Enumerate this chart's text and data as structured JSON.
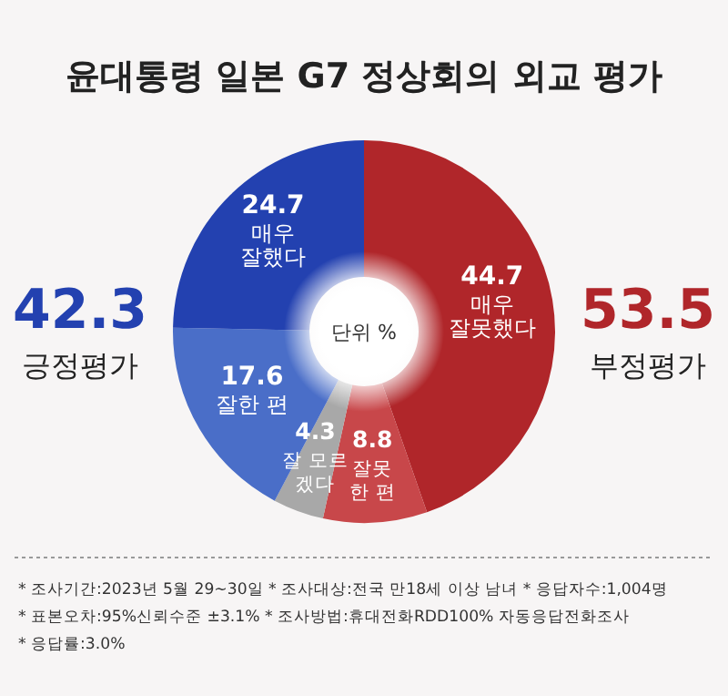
{
  "chart_data": {
    "type": "donut",
    "title": "윤대통령 일본 G7 정상회의 외교 평가",
    "categories": [
      "매우 잘못했다",
      "잘못한 편",
      "잘 모르겠다",
      "잘한 편",
      "매우 잘했다"
    ],
    "values": [
      44.7,
      8.8,
      4.3,
      17.6,
      24.7
    ],
    "colors": [
      "#b0262a",
      "#c8474a",
      "#a8a8a8",
      "#4a6ec8",
      "#2341b0"
    ],
    "data_labels": true,
    "annotations": [
      "42.3",
      "긍정평가",
      "53.5",
      "부정평가",
      "단위 %",
      "* 조사기간:2023년 5월 29~30일  * 조사대상:전국 만18세 이상 남녀  * 응답자수:1,004명",
      "* 표본오차:95%신뢰수준 ±3.1%  * 조사방법:휴대전화RDD100% 자동응답전화조사",
      "* 응답률:3.0%"
    ]
  }
}
